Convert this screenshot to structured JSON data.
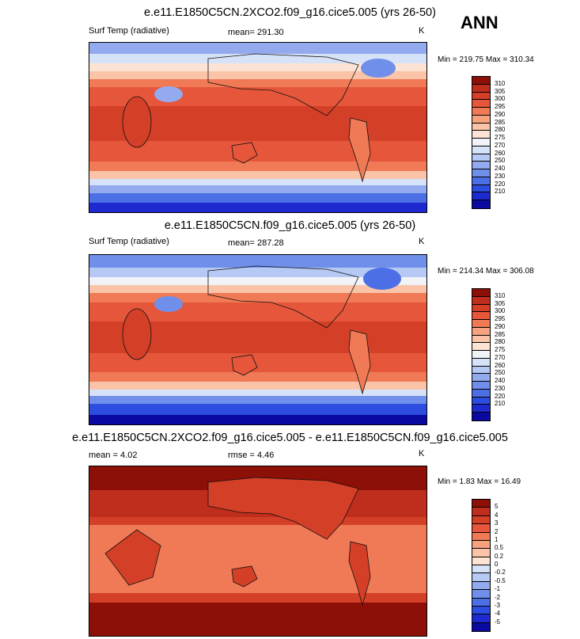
{
  "season": "ANN",
  "palettes": {
    "abs": [
      "#0b0aa0",
      "#1e2ad0",
      "#2d4de0",
      "#4d6fe6",
      "#6f8fea",
      "#93abee",
      "#b6c8f4",
      "#d6e2f8",
      "#f1f3f8",
      "#fde3d3",
      "#fbc4a8",
      "#f7a27e",
      "#f07a55",
      "#e5563a",
      "#d43f28",
      "#bf2d1c",
      "#8c1008"
    ],
    "diff": [
      "#0b0aa0",
      "#1e2ad0",
      "#2d4de0",
      "#4d6fe6",
      "#6f8fea",
      "#93abee",
      "#b6c8f4",
      "#d6e2f8",
      "#fde3d3",
      "#fbc4a8",
      "#f7a27e",
      "#f07a55",
      "#e5563a",
      "#d43f28",
      "#bf2d1c",
      "#8c1008"
    ]
  },
  "panels": [
    {
      "id": "test",
      "title": "e.e11.E1850C5CN.2XCO2.f09_g16.cice5.005 (yrs 26-50)",
      "left_label": "Surf Temp (radiative)",
      "center_label": "mean= 291.30",
      "units": "K",
      "minmax": "Min = 219.75 Max = 310.34",
      "palette": "abs",
      "levels": [
        "310",
        "305",
        "300",
        "295",
        "290",
        "285",
        "280",
        "275",
        "270",
        "260",
        "250",
        "240",
        "230",
        "220",
        "210"
      ]
    },
    {
      "id": "ctrl",
      "title": "e.e11.E1850C5CN.f09_g16.cice5.005 (yrs 26-50)",
      "left_label": "Surf Temp (radiative)",
      "center_label": "mean= 287.28",
      "units": "K",
      "minmax": "Min = 214.34 Max = 306.08",
      "palette": "abs",
      "levels": [
        "310",
        "305",
        "300",
        "295",
        "290",
        "285",
        "280",
        "275",
        "270",
        "260",
        "250",
        "240",
        "230",
        "220",
        "210"
      ]
    },
    {
      "id": "diff",
      "title": "e.e11.E1850C5CN.2XCO2.f09_g16.cice5.005 - e.e11.E1850C5CN.f09_g16.cice5.005",
      "left_label": "mean =  4.02",
      "center_label": "rmse =  4.46",
      "units": "K",
      "minmax": "Min =  1.83 Max =  16.49",
      "palette": "diff",
      "levels": [
        "5",
        "4",
        "3",
        "2",
        "1",
        "0.5",
        "0.2",
        "0",
        "-0.2",
        "-0.5",
        "-1",
        "-2",
        "-3",
        "-4",
        "-5"
      ]
    }
  ],
  "chart_data": [
    {
      "type": "heatmap",
      "title": "e.e11.E1850C5CN.2XCO2.f09_g16.cice5.005 (yrs 26-50)",
      "variable": "Surf Temp (radiative)",
      "units": "K",
      "mean": 291.3,
      "min": 219.75,
      "max": 310.34,
      "contour_levels": [
        210,
        220,
        230,
        240,
        250,
        260,
        270,
        275,
        280,
        285,
        290,
        295,
        300,
        305,
        310
      ]
    },
    {
      "type": "heatmap",
      "title": "e.e11.E1850C5CN.f09_g16.cice5.005 (yrs 26-50)",
      "variable": "Surf Temp (radiative)",
      "units": "K",
      "mean": 287.28,
      "min": 214.34,
      "max": 306.08,
      "contour_levels": [
        210,
        220,
        230,
        240,
        250,
        260,
        270,
        275,
        280,
        285,
        290,
        295,
        300,
        305,
        310
      ]
    },
    {
      "type": "heatmap",
      "title": "e.e11.E1850C5CN.2XCO2.f09_g16.cice5.005 - e.e11.E1850C5CN.f09_g16.cice5.005",
      "units": "K",
      "mean": 4.02,
      "rmse": 4.46,
      "min": 1.83,
      "max": 16.49,
      "contour_levels": [
        -5,
        -4,
        -3,
        -2,
        -1,
        -0.5,
        -0.2,
        0,
        0.2,
        0.5,
        1,
        2,
        3,
        4,
        5
      ]
    }
  ]
}
